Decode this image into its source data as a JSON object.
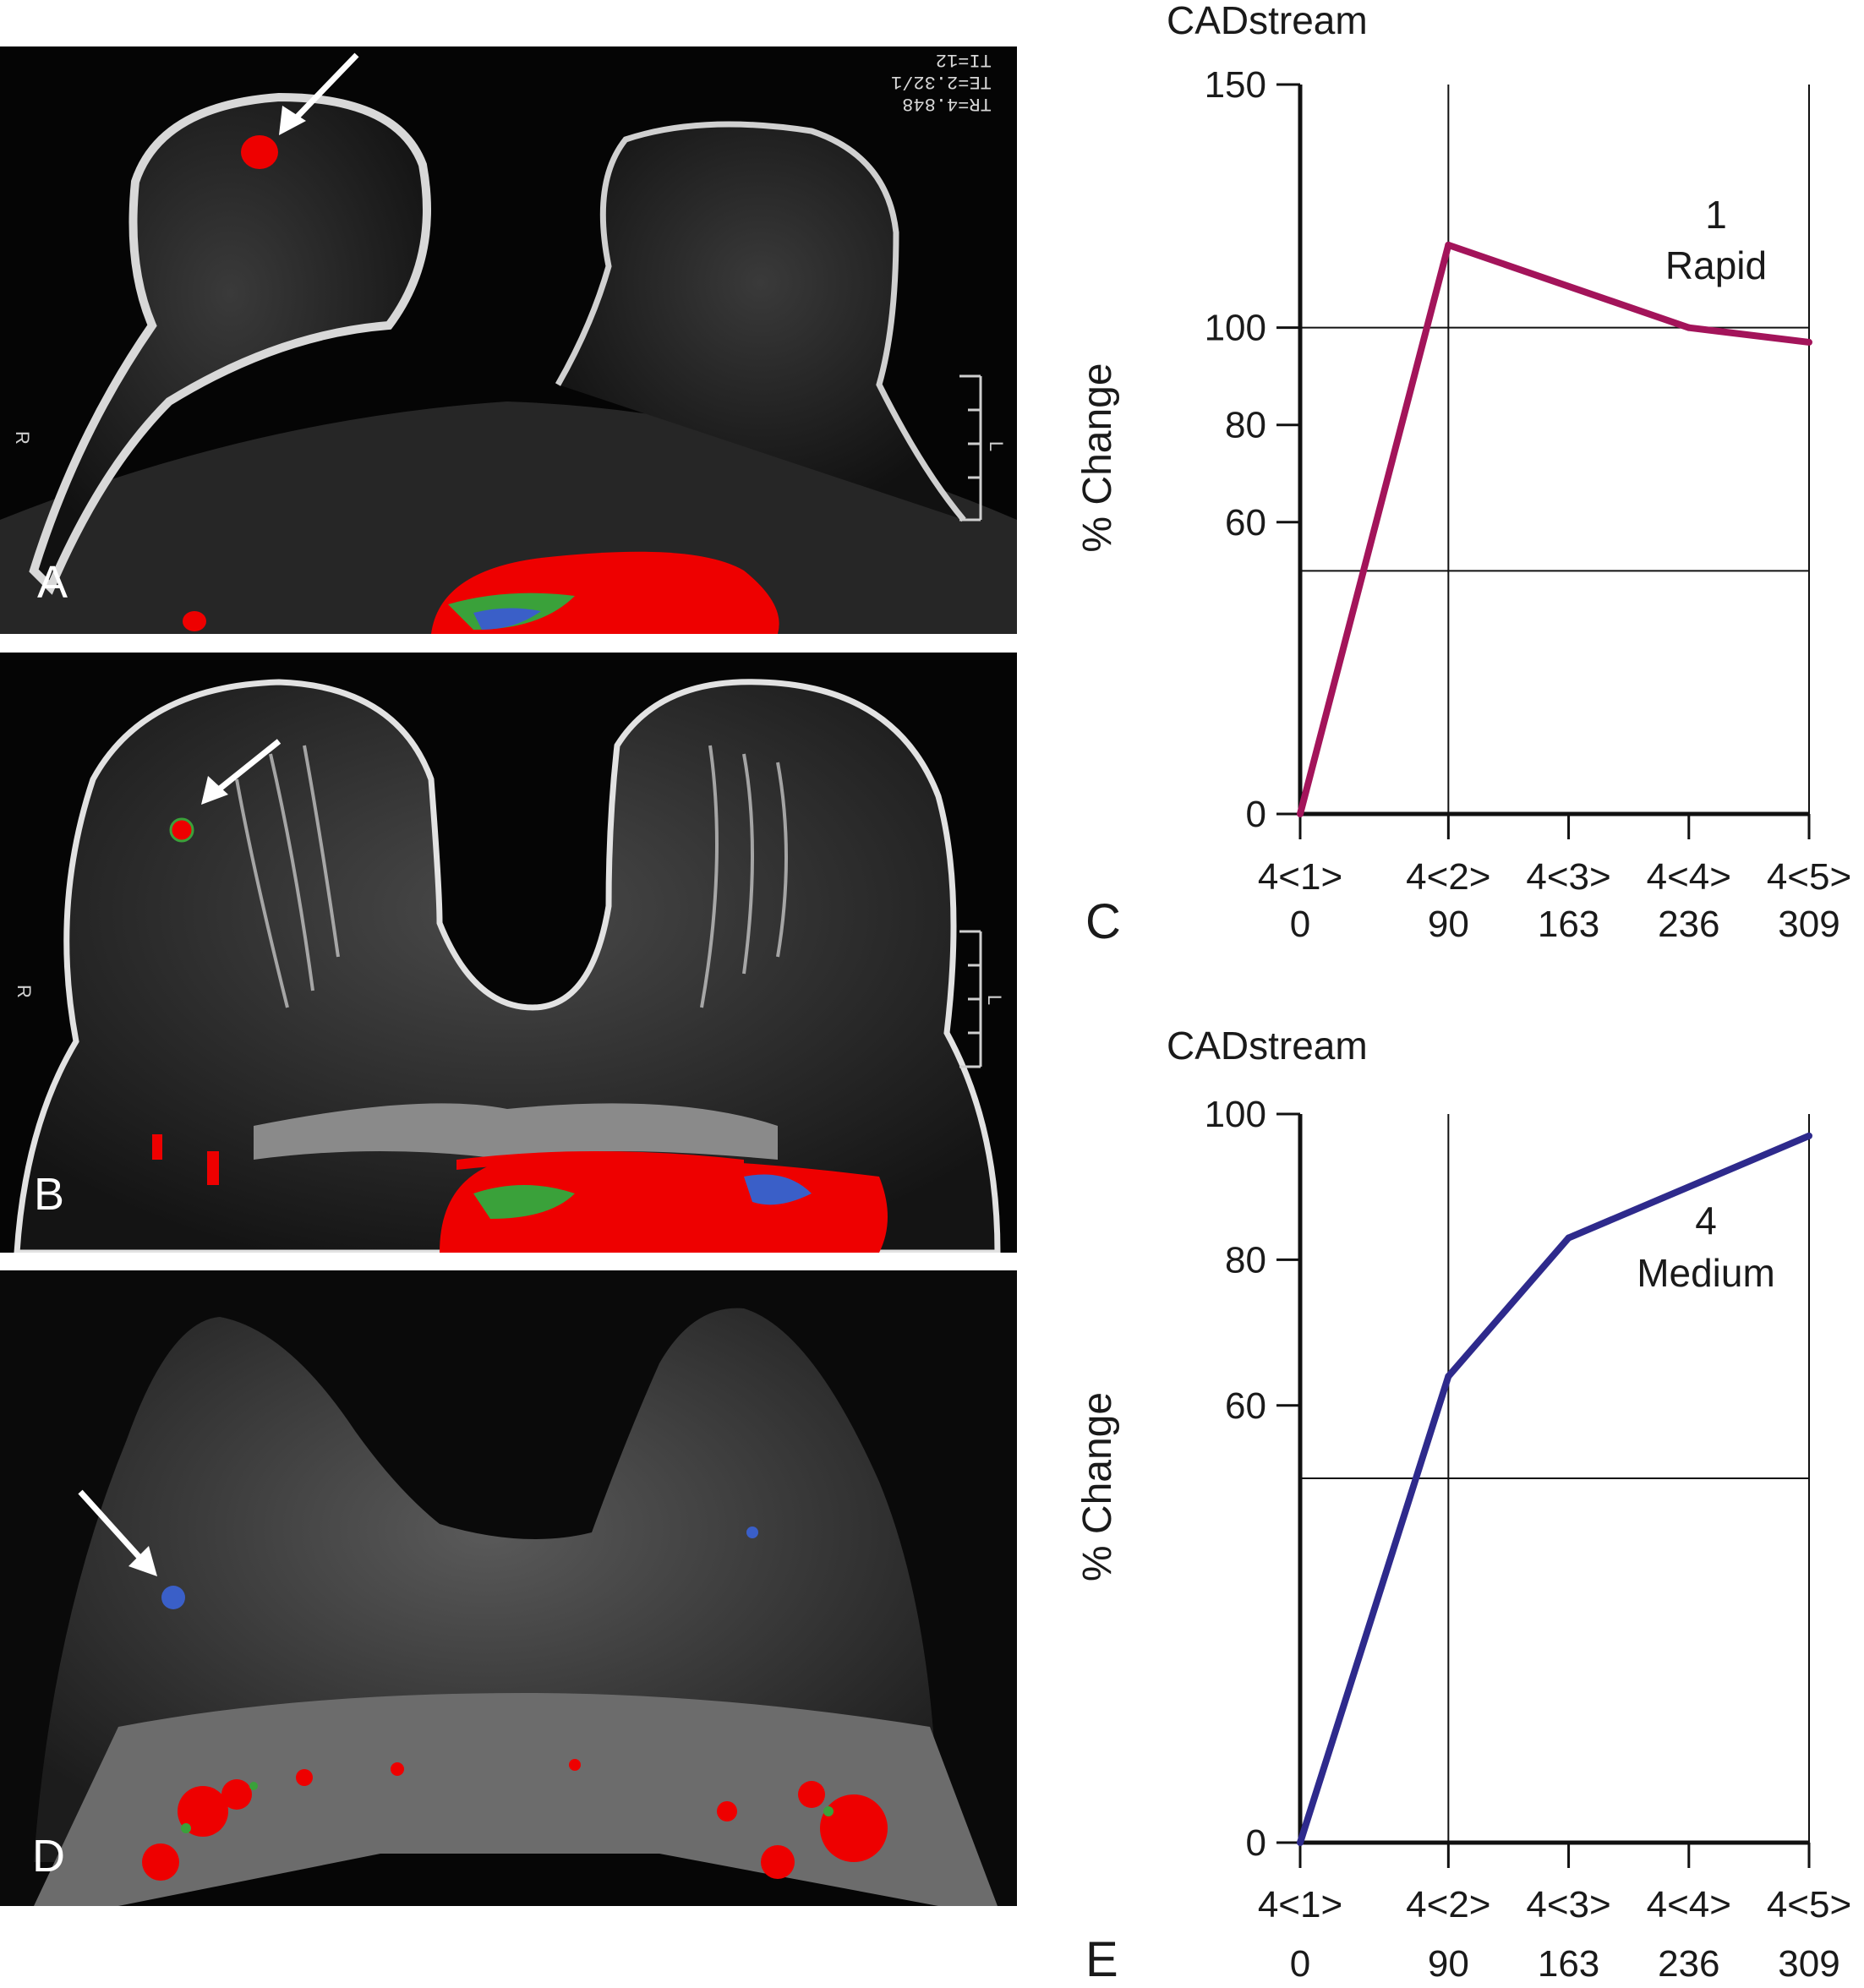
{
  "panels": {
    "A": {
      "letter": "A",
      "header_text": "TR=4.848\nTE=2.32/1\nTI=12",
      "left_tag": "R",
      "right_tag": "L"
    },
    "B": {
      "letter": "B",
      "left_tag": "R",
      "right_tag": "L"
    },
    "D": {
      "letter": "D"
    }
  },
  "colors": {
    "enhancement_red": "#ee0000",
    "enhancement_green": "#3aa13a",
    "enhancement_blue": "#3a5fc8",
    "series_C": "#a3145a",
    "series_E": "#2e2a8c"
  },
  "chart_data": [
    {
      "panel_letter": "C",
      "type": "line",
      "title": "CADstream",
      "ylabel": "% Change",
      "xlabel": "",
      "x_categories": [
        "4<1>",
        "4<2>",
        "4<3>",
        "4<4>",
        "4<5>"
      ],
      "x_values": [
        0,
        90,
        163,
        236,
        309
      ],
      "xlim": [
        0,
        309
      ],
      "y_ticks": [
        0,
        60,
        80,
        100,
        150
      ],
      "y_tick_labels": [
        "0",
        "60",
        "80",
        "100",
        "150"
      ],
      "ylim": [
        0,
        150
      ],
      "reference_lines_y": [
        50,
        100
      ],
      "reference_lines_x": [
        90
      ],
      "series": [
        {
          "x": [
            0,
            90,
            236,
            309
          ],
          "y": [
            0,
            117,
            100,
            97
          ],
          "color": "#a3145a"
        }
      ],
      "annotation": {
        "number": "1",
        "label": "Rapid"
      }
    },
    {
      "panel_letter": "E",
      "type": "line",
      "title": "CADstream",
      "ylabel": "% Change",
      "xlabel": "",
      "x_categories": [
        "4<1>",
        "4<2>",
        "4<3>",
        "4<4>",
        "4<5>"
      ],
      "x_values": [
        0,
        90,
        163,
        236,
        309
      ],
      "xlim": [
        0,
        309
      ],
      "y_ticks": [
        0,
        60,
        80,
        100
      ],
      "y_tick_labels": [
        "0",
        "60",
        "80",
        "100"
      ],
      "ylim": [
        0,
        100
      ],
      "reference_lines_y": [
        50
      ],
      "reference_lines_x": [
        90
      ],
      "series": [
        {
          "x": [
            0,
            90,
            163,
            309
          ],
          "y": [
            0,
            64,
            83,
            97
          ],
          "color": "#2e2a8c"
        }
      ],
      "annotation": {
        "number": "4",
        "label": "Medium"
      }
    }
  ]
}
